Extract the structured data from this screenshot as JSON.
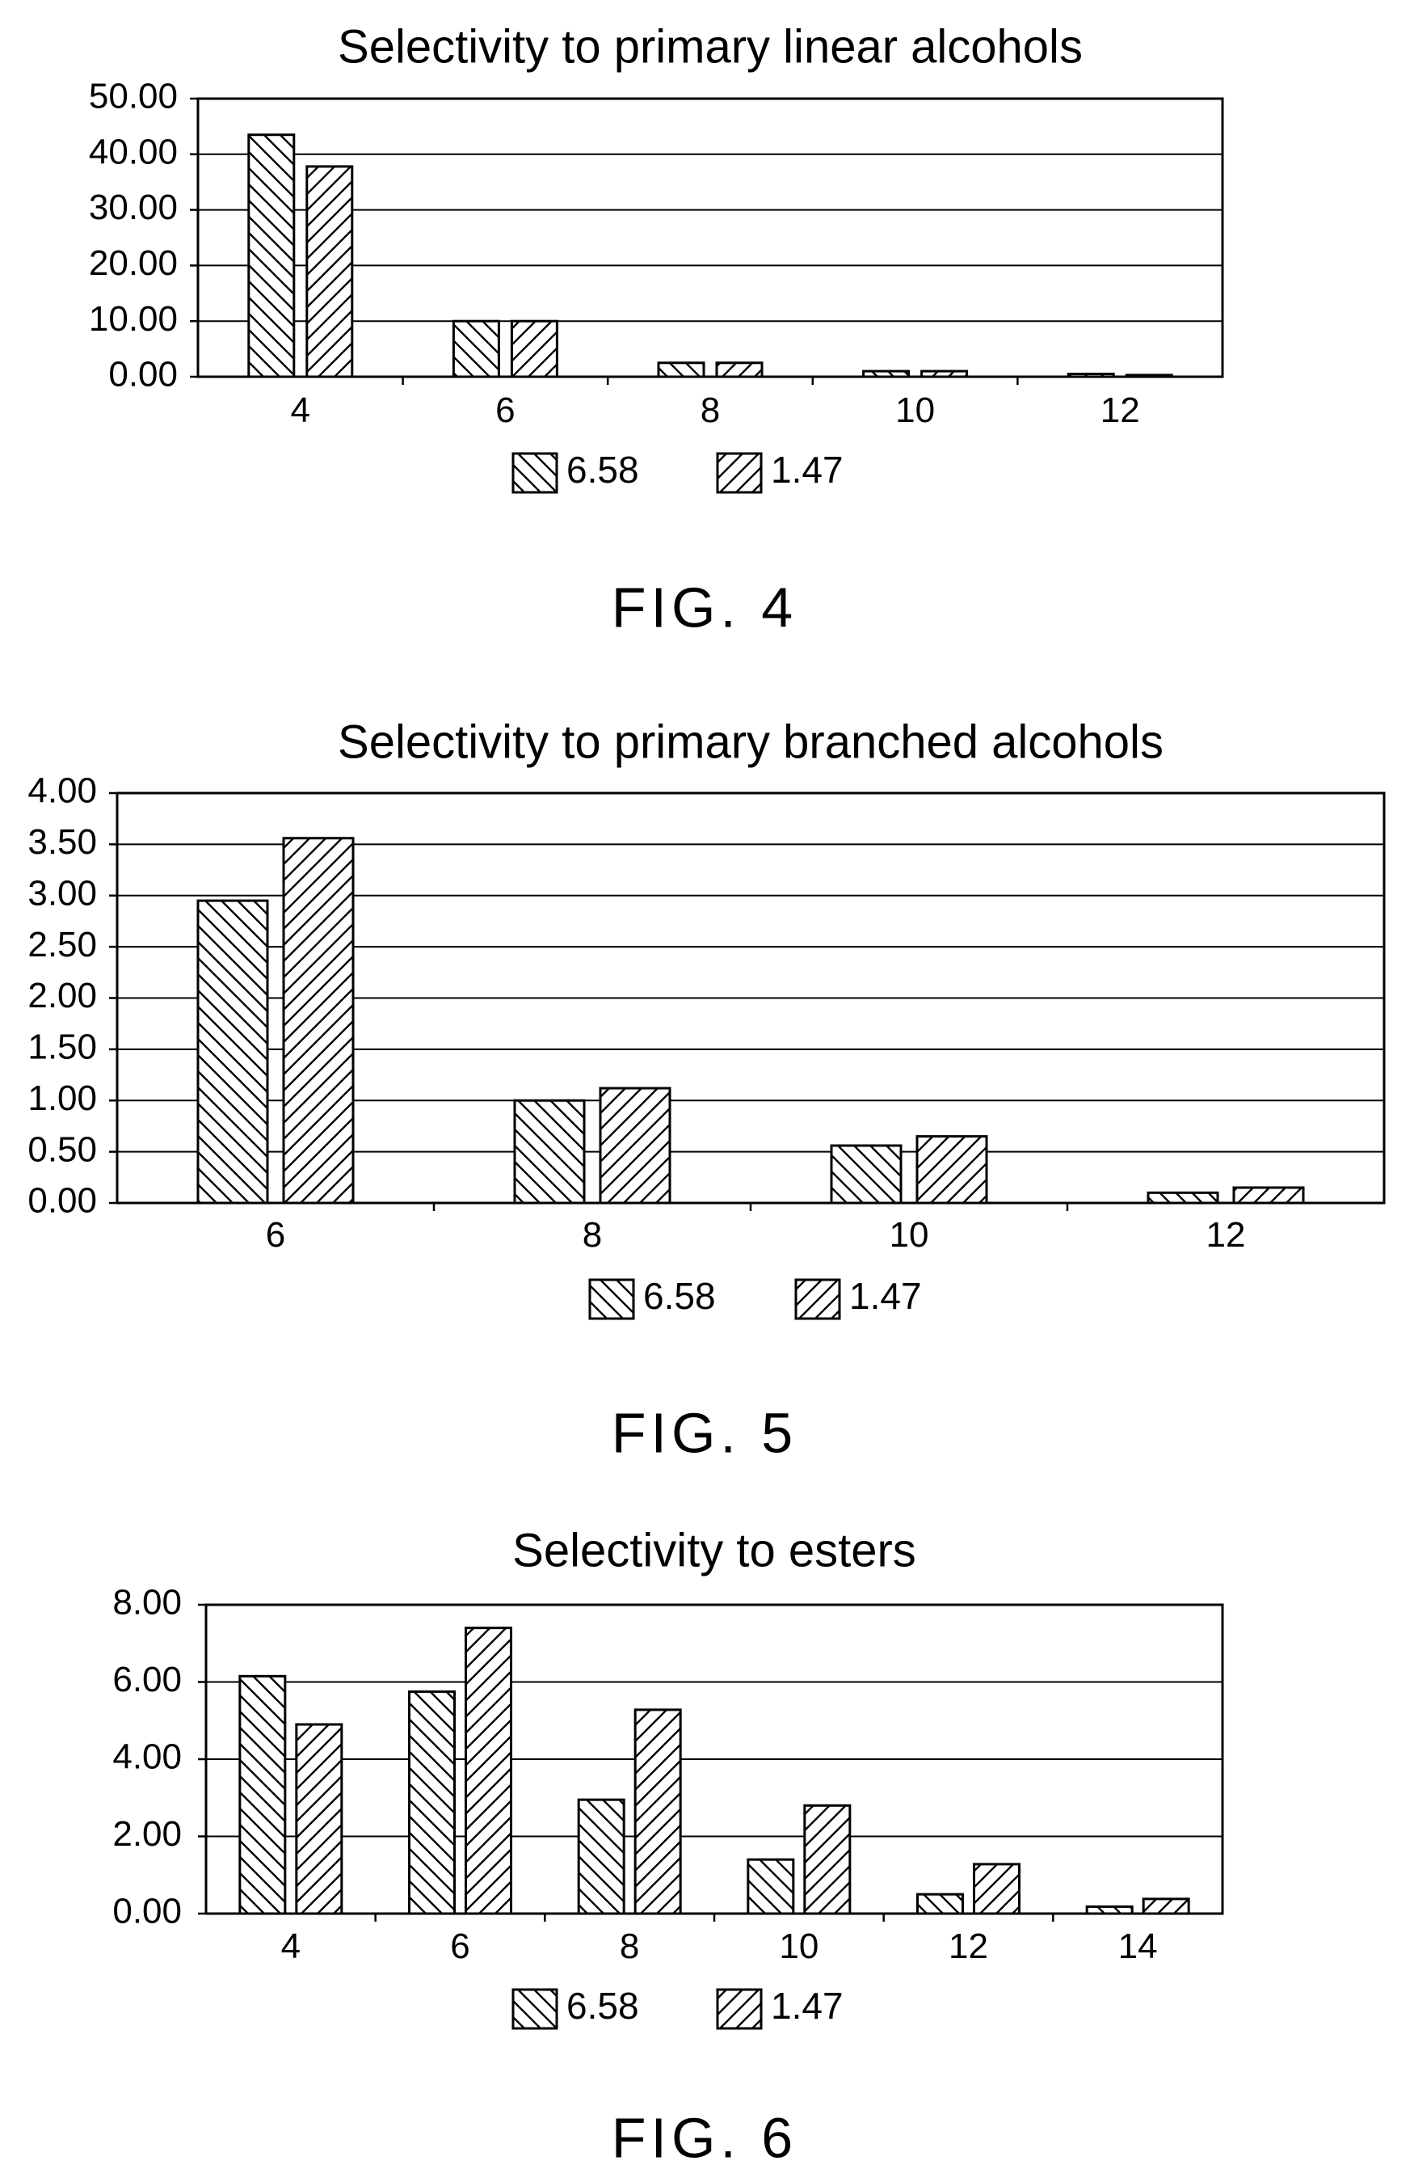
{
  "chart_data": [
    {
      "type": "bar",
      "title": "Selectivity to primary linear alcohols",
      "figure_label": "FIG. 4",
      "categories": [
        "4",
        "6",
        "8",
        "10",
        "12"
      ],
      "series": [
        {
          "name": "6.58",
          "values": [
            43.5,
            10.0,
            2.5,
            1.0,
            0.5
          ]
        },
        {
          "name": "1.47",
          "values": [
            37.8,
            10.0,
            2.5,
            1.0,
            0.3
          ]
        }
      ],
      "y_ticks": [
        "0.00",
        "10.00",
        "20.00",
        "30.00",
        "40.00",
        "50.00"
      ],
      "ylim": [
        0,
        50
      ],
      "xlabel": "",
      "ylabel": "",
      "grid": true,
      "legend_position": "bottom"
    },
    {
      "type": "bar",
      "title": "Selectivity to primary branched alcohols",
      "figure_label": "FIG. 5",
      "categories": [
        "6",
        "8",
        "10",
        "12"
      ],
      "series": [
        {
          "name": "6.58",
          "values": [
            2.95,
            1.0,
            0.56,
            0.1
          ]
        },
        {
          "name": "1.47",
          "values": [
            3.56,
            1.12,
            0.65,
            0.15
          ]
        }
      ],
      "y_ticks": [
        "0.00",
        "0.50",
        "1.00",
        "1.50",
        "2.00",
        "2.50",
        "3.00",
        "3.50",
        "4.00"
      ],
      "ylim": [
        0,
        4
      ],
      "xlabel": "",
      "ylabel": "",
      "grid": true,
      "legend_position": "bottom"
    },
    {
      "type": "bar",
      "title": "Selectivity to esters",
      "figure_label": "FIG. 6",
      "categories": [
        "4",
        "6",
        "8",
        "10",
        "12",
        "14"
      ],
      "series": [
        {
          "name": "6.58",
          "values": [
            6.15,
            5.75,
            2.95,
            1.4,
            0.5,
            0.18
          ]
        },
        {
          "name": "1.47",
          "values": [
            4.9,
            7.4,
            5.28,
            2.8,
            1.28,
            0.38
          ]
        }
      ],
      "y_ticks": [
        "0.00",
        "2.00",
        "4.00",
        "6.00",
        "8.00"
      ],
      "ylim": [
        0,
        8
      ],
      "xlabel": "",
      "ylabel": "",
      "grid": true,
      "legend_position": "bottom"
    }
  ]
}
